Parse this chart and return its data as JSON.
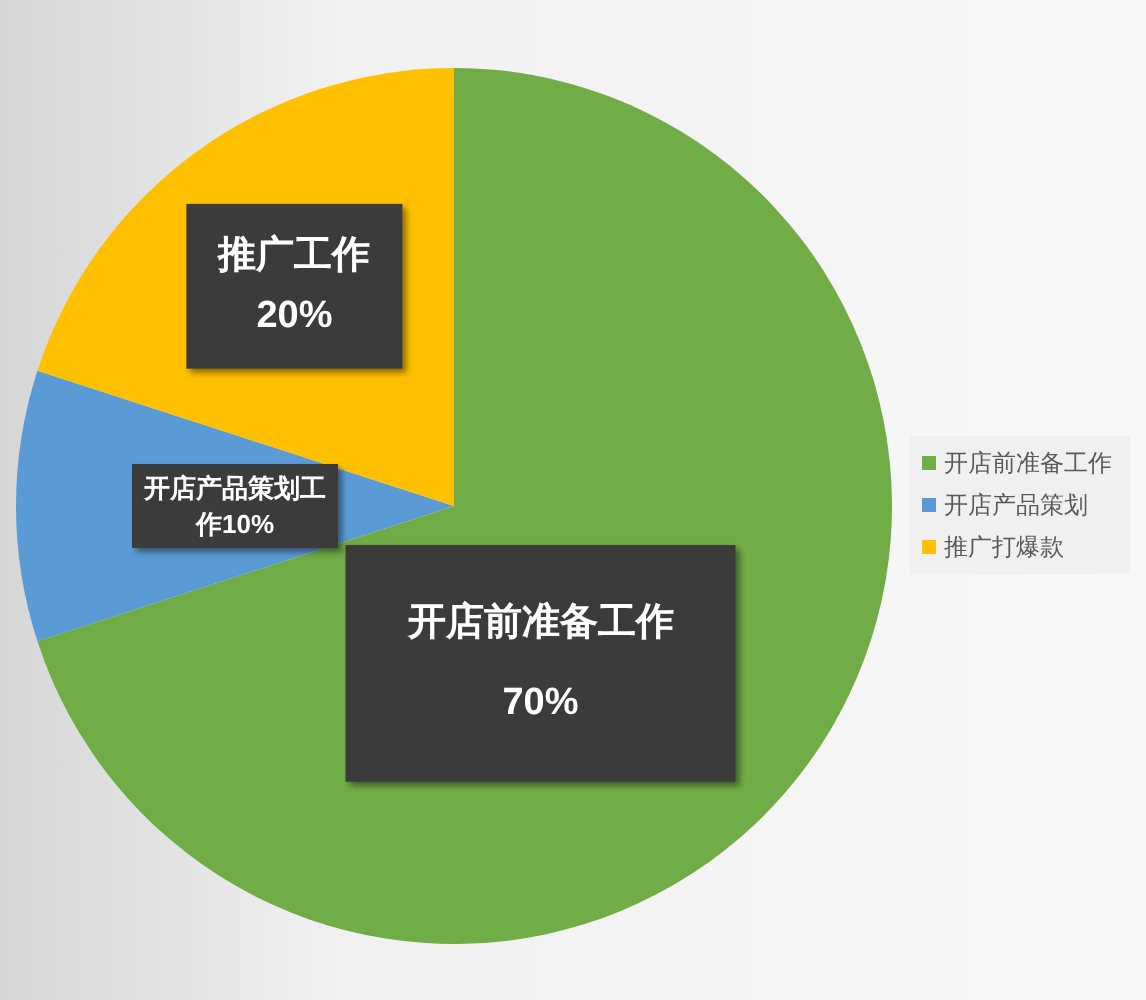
{
  "chart_data": {
    "type": "pie",
    "categories": [
      "开店前准备工作",
      "开店产品策划",
      "推广打爆款"
    ],
    "values": [
      70,
      10,
      20
    ],
    "colors": [
      "#70ad47",
      "#5b9bd5",
      "#ffc000"
    ],
    "value_labels": [
      "开店前准备工作 70%",
      "开店产品策划工作10%",
      "推广工作 20%"
    ],
    "legend": "right"
  }
}
